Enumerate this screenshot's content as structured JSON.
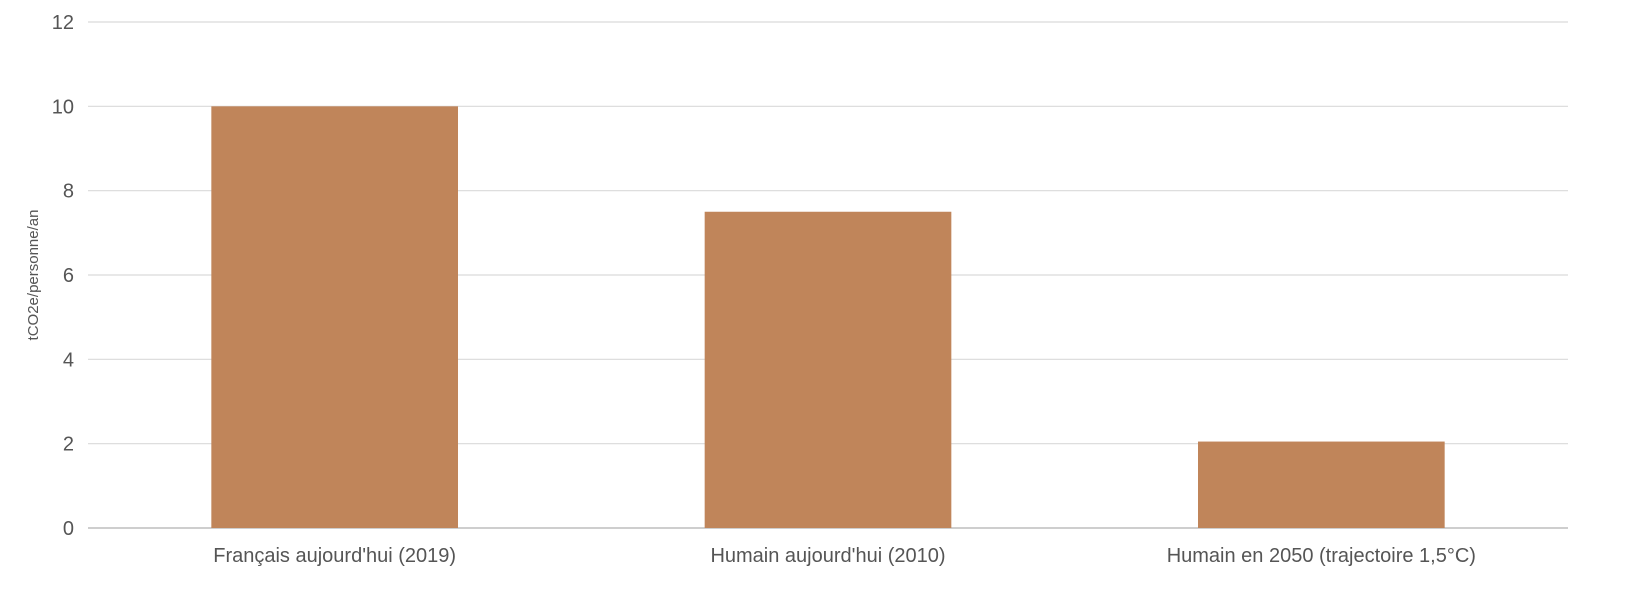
{
  "chart_data": {
    "type": "bar",
    "title": "",
    "categories": [
      "Français aujourd'hui (2019)",
      "Humain aujourd'hui (2010)",
      "Humain en 2050 (trajectoire 1,5°C)"
    ],
    "values": [
      10.0,
      7.5,
      2.05
    ],
    "xlabel": "",
    "ylabel": "tCO2e/personne/an",
    "ylim": [
      0,
      12
    ],
    "yticks": [
      0,
      2,
      4,
      6,
      8,
      10,
      12
    ],
    "grid": true,
    "legend": "none",
    "colors": {
      "bar": "#c0855a",
      "grid": "#d9d9d9",
      "axis": "#bdbdbd",
      "text": "#555555"
    }
  }
}
